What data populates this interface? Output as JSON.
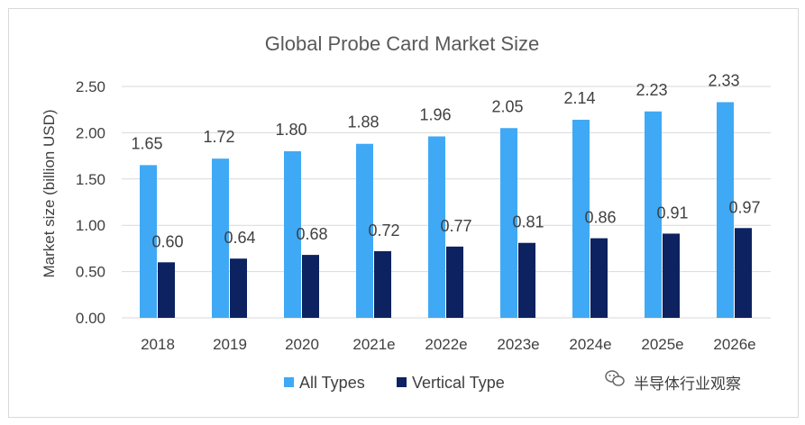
{
  "chart_data": {
    "type": "bar",
    "title": "Global Probe Card Market Size",
    "ylabel": "Market size (billion USD)",
    "xlabel": "",
    "categories": [
      "2018",
      "2019",
      "2020",
      "2021e",
      "2022e",
      "2023e",
      "2024e",
      "2025e",
      "2026e"
    ],
    "series": [
      {
        "name": "All Types",
        "color": "#3fa9f5",
        "values": [
          1.65,
          1.72,
          1.8,
          1.88,
          1.96,
          2.05,
          2.14,
          2.23,
          2.33
        ],
        "labels": [
          "1.65",
          "1.72",
          "1.80",
          "1.88",
          "1.96",
          "2.05",
          "2.14",
          "2.23",
          "2.33"
        ]
      },
      {
        "name": "Vertical Type",
        "color": "#0d2260",
        "values": [
          0.6,
          0.64,
          0.68,
          0.72,
          0.77,
          0.81,
          0.86,
          0.91,
          0.97
        ],
        "labels": [
          "0.60",
          "0.64",
          "0.68",
          "0.72",
          "0.77",
          "0.81",
          "0.86",
          "0.91",
          "0.97"
        ]
      }
    ],
    "ylim": [
      0,
      2.5
    ],
    "yticks": [
      "0.00",
      "0.50",
      "1.00",
      "1.50",
      "2.00",
      "2.50"
    ],
    "grid": true,
    "legend": "bottom"
  },
  "watermark": {
    "text": "半导体行业观察",
    "icon": "wechat-icon"
  }
}
